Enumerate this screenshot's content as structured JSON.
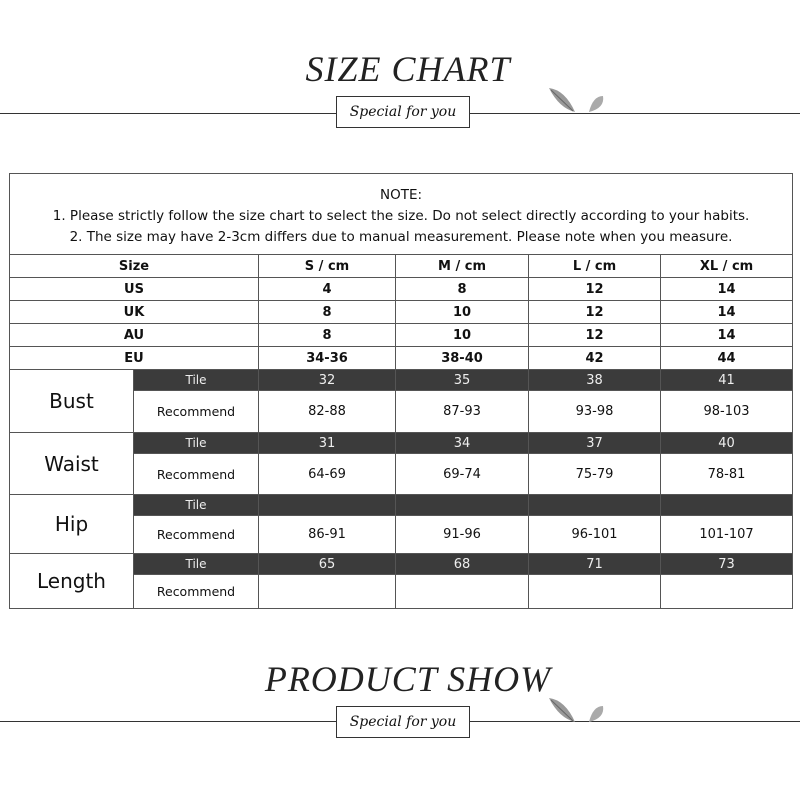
{
  "header": {
    "title": "SIZE CHART",
    "tagline": "Special for you"
  },
  "note": {
    "heading": "NOTE:",
    "lines": [
      "1. Please strictly follow the size chart  to select the size. Do not select directly according to your habits.",
      "2. The size may have 2-3cm differs due to manual measurement. Please note when you measure."
    ]
  },
  "table": {
    "columns": [
      "Size",
      "S / cm",
      "M / cm",
      "L / cm",
      "XL / cm"
    ],
    "size_rows": [
      {
        "label": "US",
        "values": [
          "4",
          "8",
          "12",
          "14"
        ]
      },
      {
        "label": "UK",
        "values": [
          "8",
          "10",
          "12",
          "14"
        ]
      },
      {
        "label": "AU",
        "values": [
          "8",
          "10",
          "12",
          "14"
        ]
      },
      {
        "label": "EU",
        "values": [
          "34-36",
          "38-40",
          "42",
          "44"
        ]
      }
    ],
    "tile_label": "Tile",
    "recommend_label": "Recommend",
    "measurements": [
      {
        "name": "Bust",
        "tile": [
          "32",
          "35",
          "38",
          "41"
        ],
        "recommend": [
          "82-88",
          "87-93",
          "93-98",
          "98-103"
        ]
      },
      {
        "name": "Waist",
        "tile": [
          "31",
          "34",
          "37",
          "40"
        ],
        "recommend": [
          "64-69",
          "69-74",
          "75-79",
          "78-81"
        ]
      },
      {
        "name": "Hip",
        "tile": [
          "",
          "",
          "",
          ""
        ],
        "recommend": [
          "86-91",
          "91-96",
          "96-101",
          "101-107"
        ]
      },
      {
        "name": "Length",
        "tile": [
          "65",
          "68",
          "71",
          "73"
        ],
        "recommend": [
          "",
          "",
          "",
          ""
        ]
      }
    ]
  },
  "footer": {
    "title": "PRODUCT SHOW",
    "tagline": "Special for you"
  }
}
